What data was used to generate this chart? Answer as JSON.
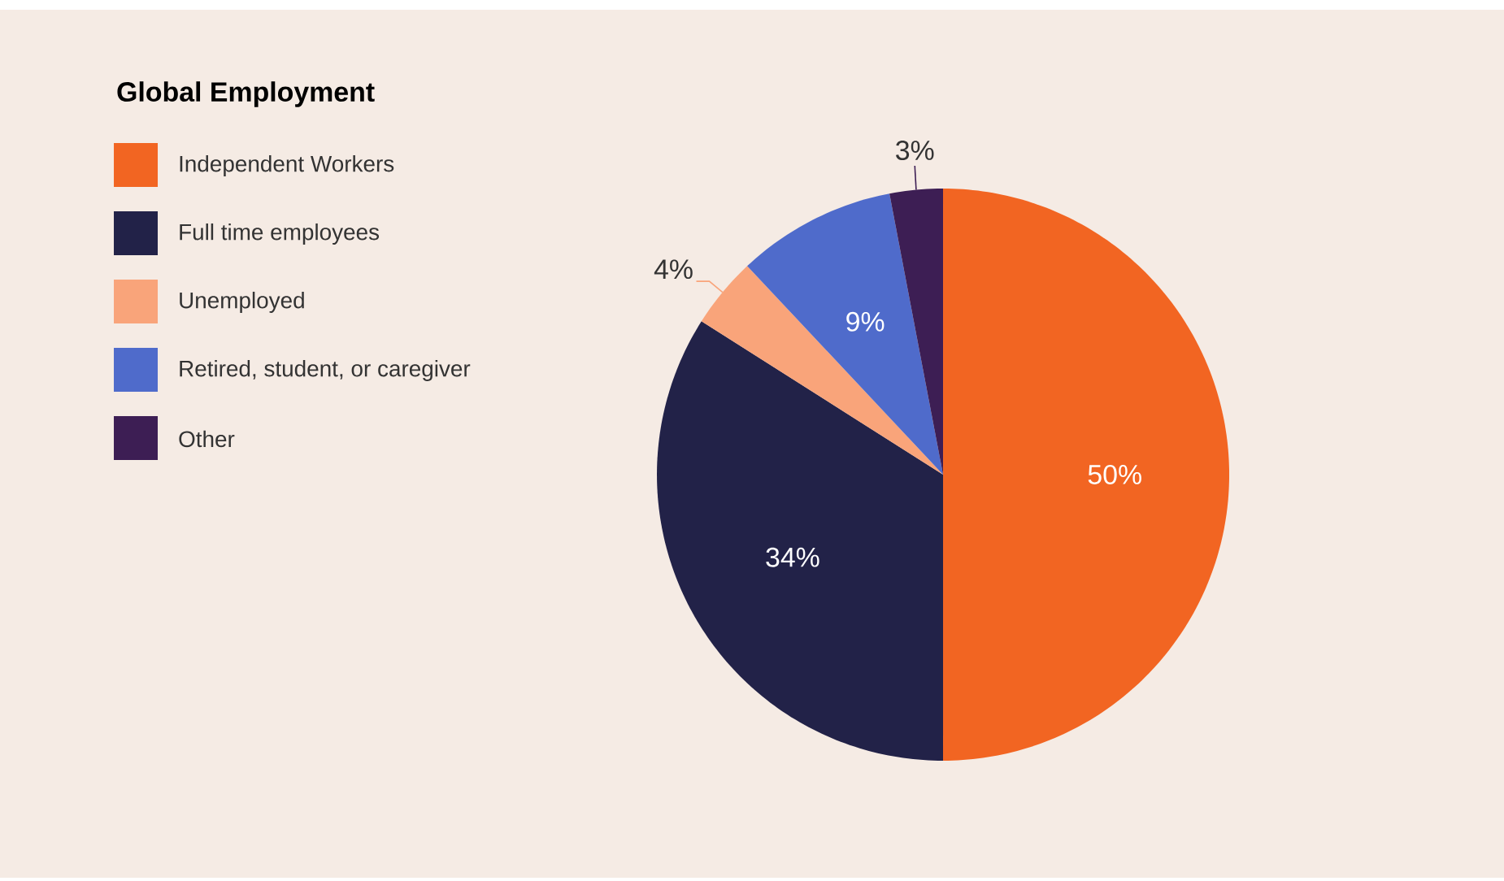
{
  "chart_data": {
    "type": "pie",
    "legend_title": "Global Employment",
    "categories": [
      "Independent Workers",
      "Full time employees",
      "Unemployed",
      "Retired, student, or caregiver",
      "Other"
    ],
    "values": [
      50,
      34,
      4,
      9,
      3
    ],
    "value_labels": [
      "50%",
      "34%",
      "4%",
      "9%",
      "3%"
    ],
    "colors": [
      "#f26522",
      "#222248",
      "#f9a47a",
      "#4f6bcb",
      "#3d1e54"
    ],
    "legend": "left"
  }
}
